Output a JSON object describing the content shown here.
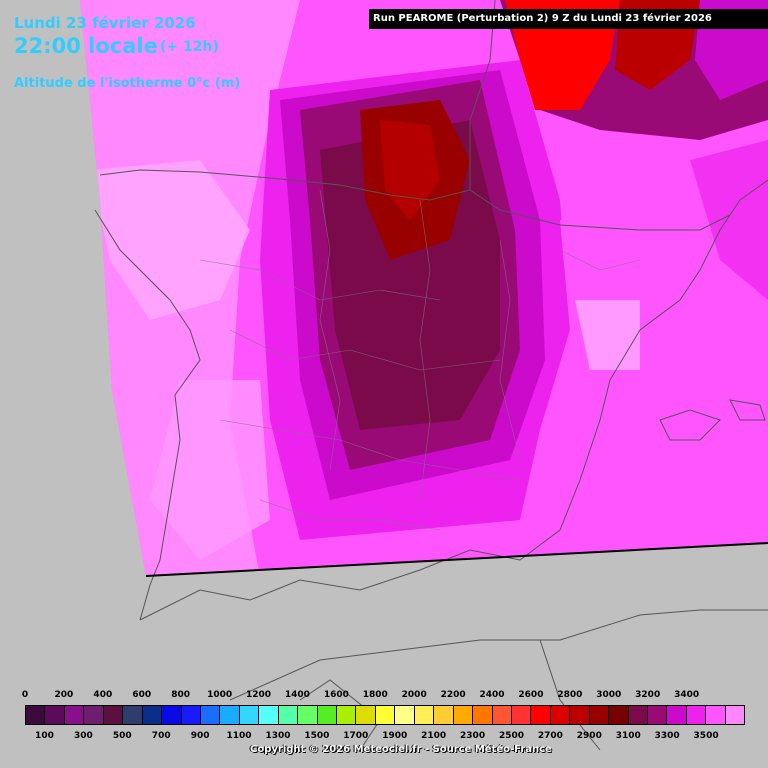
{
  "header": {
    "date": "Lundi 23 février 2026",
    "time": "22:00 locale",
    "offset": "(+ 12h)",
    "parameter": "Altitude de l'isotherme 0°c (m)"
  },
  "run_info": "Run PEAROME (Perturbation 2) 9 Z du Lundi 23 février 2026",
  "copyright": "Copyright © 2026 Meteociel.fr - Source Météo-France",
  "legend": {
    "top_labels": [
      "0",
      "200",
      "400",
      "600",
      "800",
      "1000",
      "1200",
      "1400",
      "1600",
      "1800",
      "2000",
      "2200",
      "2400",
      "2600",
      "2800",
      "3000",
      "3200",
      "3400"
    ],
    "bottom_labels": [
      "100",
      "300",
      "500",
      "700",
      "900",
      "1100",
      "1300",
      "1500",
      "1700",
      "1900",
      "2100",
      "2300",
      "2500",
      "2700",
      "2900",
      "3100",
      "3300",
      "3500"
    ],
    "colors": [
      "#3d0a3d",
      "#5c0a5c",
      "#8a0f8a",
      "#6e1e6e",
      "#5c1040",
      "#2e3d6e",
      "#0a2e8a",
      "#0a0ae6",
      "#1a1aff",
      "#1a6eff",
      "#1aaaff",
      "#33d6ff",
      "#55ffff",
      "#55ffaa",
      "#66ff66",
      "#55ee22",
      "#aaee00",
      "#dddd00",
      "#ffff33",
      "#ffff88",
      "#ffee55",
      "#ffcc33",
      "#ffaa00",
      "#ff7700",
      "#ff5533",
      "#ff3333",
      "#ff0000",
      "#dd0000",
      "#bb0000",
      "#990000",
      "#770000",
      "#7a0a4a",
      "#990a77",
      "#cc0acc",
      "#ee22ee",
      "#ff55ff",
      "#ff88ff"
    ]
  },
  "map": {
    "background": "#c0c0c0",
    "border_color": "#555555"
  }
}
